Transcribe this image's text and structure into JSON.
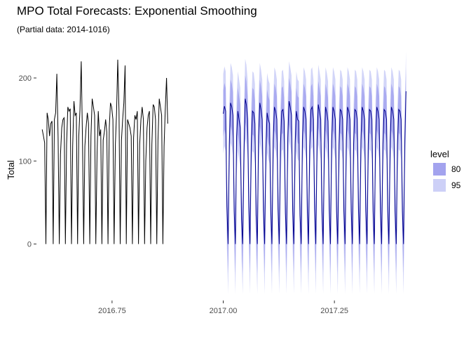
{
  "chart_data": {
    "type": "line",
    "title": "MPO Total Forecasts: Exponential Smoothing",
    "subtitle": "(Partial data: 2014-1016)",
    "xlabel": "",
    "ylabel": "Total",
    "xlim": [
      2016.58,
      2017.42
    ],
    "ylim": [
      -68,
      233
    ],
    "x_ticks": [
      {
        "value": 2016.75,
        "label": "2016.75"
      },
      {
        "value": 2017.0,
        "label": "2017.00"
      },
      {
        "value": 2017.25,
        "label": "2017.25"
      }
    ],
    "y_ticks": [
      {
        "value": 0,
        "label": "0"
      },
      {
        "value": 100,
        "label": "100"
      },
      {
        "value": 200,
        "label": "200"
      }
    ],
    "grid": false,
    "legend": {
      "title": "level",
      "position": "right",
      "items": [
        {
          "label": "80",
          "color": "#a3a3ee"
        },
        {
          "label": "95",
          "color": "#cdd0f7"
        }
      ]
    },
    "colors": {
      "history": "#000000",
      "forecast": "#00008b",
      "pi80": "#a3a3ee",
      "pi95": "#cdd0f7"
    },
    "series": [
      {
        "role": "history",
        "start": 2016.593,
        "step": 0.00274,
        "weekly_pattern_values": [
          138,
          130,
          122,
          0,
          158,
          150,
          130,
          145,
          148,
          0,
          150,
          158,
          205,
          128,
          0,
          108,
          140,
          150,
          152,
          0,
          120,
          165,
          160,
          163,
          0,
          118,
          172,
          155,
          158,
          0,
          130,
          162,
          220,
          130,
          0,
          118,
          140,
          158,
          145,
          0,
          130,
          175,
          165,
          155,
          0,
          110,
          160,
          130,
          138,
          0,
          125,
          135,
          150,
          135,
          0,
          140,
          170,
          165,
          150,
          0,
          120,
          158,
          222,
          160,
          0,
          125,
          150,
          170,
          215,
          0,
          150,
          145,
          140,
          130,
          0,
          128,
          155,
          150,
          160,
          0,
          120,
          150,
          165,
          150,
          0,
          100,
          140,
          155,
          160,
          0,
          120,
          168,
          165,
          150,
          0,
          125,
          175,
          165,
          155,
          0,
          118,
          162,
          200,
          145
        ]
      },
      {
        "role": "forecast",
        "start": 2017.0,
        "step": 0.00274,
        "values": [
          157,
          166,
          160,
          45,
          0,
          120,
          170,
          165,
          155,
          40,
          0,
          130,
          160,
          150,
          140,
          30,
          0,
          110,
          175,
          168,
          150,
          45,
          0,
          120,
          160,
          158,
          145,
          35,
          0,
          130,
          170,
          162,
          150,
          40,
          0,
          115,
          158,
          150,
          145,
          40,
          0,
          125,
          165,
          160,
          150,
          42,
          0,
          120,
          160,
          162,
          148,
          38,
          0,
          128,
          172,
          165,
          155,
          40,
          0,
          120,
          160,
          150,
          148,
          35,
          0,
          125,
          165,
          160,
          150,
          40,
          0,
          118,
          162,
          165,
          150,
          42,
          0,
          125,
          168,
          160,
          150,
          40,
          0,
          120,
          165,
          158,
          148,
          40,
          0,
          125,
          165,
          160,
          150,
          40,
          0,
          120,
          162,
          160,
          150,
          40,
          0,
          125,
          165,
          160,
          150,
          40,
          0,
          120,
          162,
          160,
          150,
          40,
          0,
          125,
          165,
          160,
          150,
          40,
          0,
          120,
          162,
          160,
          150,
          40,
          0,
          125,
          165,
          160,
          150,
          40,
          0,
          120,
          162,
          160,
          150,
          40,
          0,
          125,
          165,
          160,
          150,
          40,
          0,
          120,
          162,
          160,
          150,
          40,
          0,
          125,
          184
        ],
        "pi80_halfwidth": 28,
        "pi95_halfwidth": 48
      }
    ]
  }
}
